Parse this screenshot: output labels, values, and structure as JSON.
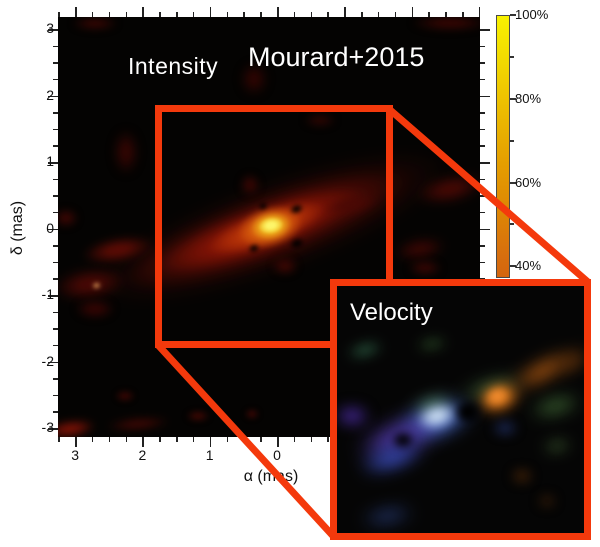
{
  "accent_color": "#f4390c",
  "intensity_panel": {
    "label": "Intensity",
    "credit": "Mourard+2015",
    "xlabel": "α (mas)",
    "ylabel": "δ (mas)",
    "x_tick_labels": [
      "3",
      "2",
      "1",
      "0"
    ],
    "x_tick_values": [
      3,
      2,
      1,
      0
    ],
    "y_tick_labels": [
      "3",
      "2",
      "1",
      "0",
      "-1",
      "-2",
      "-3"
    ],
    "y_tick_values": [
      3,
      2,
      1,
      0,
      -1,
      -2,
      -3
    ]
  },
  "colorbar": {
    "labels": [
      "100%",
      "80%",
      "60%",
      "40%"
    ],
    "values": [
      100,
      80,
      60,
      40
    ],
    "minor_values": [
      90,
      70,
      50
    ],
    "top_color": "#f8f200",
    "bottom_color": "#d4650f"
  },
  "velocity_panel": {
    "label": "Velocity"
  },
  "chart_data": {
    "type": "heatmap",
    "panels": [
      {
        "name": "intensity",
        "title": "Intensity",
        "annotation": "Mourard+2015",
        "xlabel": "α (mas)",
        "ylabel": "δ (mas)",
        "x_axis": {
          "range": [
            3.25,
            -3.0
          ],
          "direction": "reversed",
          "labeled_ticks": [
            3,
            2,
            1,
            0
          ],
          "minor_tick_step": 0.25
        },
        "y_axis": {
          "range": [
            -3.15,
            3.2
          ],
          "labeled_ticks": [
            3,
            2,
            1,
            0,
            -1,
            -2,
            -3
          ],
          "minor_tick_step": 0.25
        },
        "colorbar": {
          "tick_labels": [
            "100%",
            "80%",
            "60%",
            "40%"
          ],
          "visible_range_pct": [
            35,
            100
          ],
          "scale": "yellow (100%) to orange (40%)"
        },
        "features": [
          "elongated emission band from lower-left (~2.5,-1) to upper-right (~-2.5,1) mas, PA ~ -20 deg from x-axis",
          "bright yellow core at ~(0,0) mas peaking near 100%",
          "faint dark-red clumps scattered over field at ~35-45% level",
          "small black nulls flanking the core"
        ],
        "zoom_box_mas": {
          "x": [
            1.8,
            -1.7
          ],
          "y": [
            1.8,
            -1.75
          ]
        }
      },
      {
        "name": "velocity",
        "title": "Velocity",
        "description": "zoomed velocity map of the boxed region: blue/purple-shifted emission on the lower-left side, orange/red-shifted emission on the upper-right side, green wisps between, dark null at the center",
        "axes": "none (inset, no ticks)"
      }
    ]
  },
  "intensity_blobs": {
    "format": [
      "cx",
      "cy",
      "w",
      "h",
      "rot_deg",
      "color",
      "blur_px"
    ],
    "items": [
      [
        215,
        210,
        370,
        88,
        -20,
        "#3a0703",
        7
      ],
      [
        207,
        212,
        300,
        62,
        -20,
        "#5e0c04",
        5
      ],
      [
        202,
        213,
        215,
        46,
        -20,
        "#8e1505",
        4
      ],
      [
        208,
        211,
        125,
        36,
        -20,
        "#c23d08",
        3
      ],
      [
        212,
        210,
        66,
        42,
        -15,
        "#e06c0e",
        2
      ],
      [
        213,
        209,
        42,
        28,
        -10,
        "#f2c41e",
        2
      ],
      [
        213,
        208,
        26,
        17,
        -10,
        "#fdf56a",
        1
      ],
      [
        238,
        192,
        15,
        10,
        -20,
        "#000000",
        2
      ],
      [
        239,
        226,
        16,
        11,
        -20,
        "#000000",
        2
      ],
      [
        196,
        231,
        12,
        9,
        -20,
        "#000000",
        2
      ],
      [
        205,
        189,
        10,
        8,
        -20,
        "#000000",
        2
      ],
      [
        37,
        6,
        46,
        13,
        0,
        "#3a0603",
        4
      ],
      [
        196,
        62,
        26,
        32,
        0,
        "#330502",
        5
      ],
      [
        68,
        135,
        24,
        44,
        0,
        "#380603",
        5
      ],
      [
        8,
        201,
        24,
        18,
        0,
        "#400704",
        4
      ],
      [
        60,
        233,
        72,
        26,
        -10,
        "#5c0b04",
        4
      ],
      [
        32,
        267,
        74,
        32,
        -8,
        "#4a0804",
        5
      ],
      [
        38,
        268,
        9,
        7,
        -8,
        "#dd9858",
        2
      ],
      [
        67,
        379,
        20,
        12,
        0,
        "#390603",
        3
      ],
      [
        140,
        399,
        24,
        12,
        0,
        "#3c0703",
        3
      ],
      [
        194,
        397,
        14,
        10,
        0,
        "#420704",
        3
      ],
      [
        227,
        249,
        26,
        18,
        0,
        "#3f0703",
        4
      ],
      [
        392,
        172,
        70,
        28,
        -12,
        "#460804",
        5
      ],
      [
        392,
        6,
        78,
        16,
        0,
        "#380603",
        4
      ],
      [
        12,
        412,
        52,
        18,
        -8,
        "#7c1105",
        4
      ],
      [
        80,
        407,
        64,
        14,
        -5,
        "#3c0703",
        4
      ],
      [
        192,
        168,
        20,
        22,
        0,
        "#3b0603",
        4
      ],
      [
        292,
        188,
        58,
        20,
        -12,
        "#4a0804",
        4
      ],
      [
        362,
        232,
        52,
        22,
        -10,
        "#3a0603",
        5
      ],
      [
        262,
        103,
        32,
        14,
        0,
        "#2f0502",
        4
      ],
      [
        37,
        292,
        40,
        20,
        0,
        "#350503",
        4
      ],
      [
        367,
        251,
        34,
        16,
        0,
        "#380603",
        4
      ]
    ]
  },
  "velocity_blobs": {
    "format": [
      "cx",
      "cy",
      "w",
      "h",
      "rot_deg",
      "color",
      "blur_px"
    ],
    "items": [
      [
        98,
        134,
        85,
        42,
        -18,
        "#4468cc",
        8
      ],
      [
        62,
        152,
        90,
        38,
        -20,
        "#5038a8",
        9
      ],
      [
        15,
        130,
        36,
        22,
        0,
        "#46289a",
        7
      ],
      [
        55,
        172,
        70,
        26,
        -18,
        "#3448b0",
        8
      ],
      [
        50,
        230,
        55,
        18,
        -10,
        "#223468",
        8
      ],
      [
        95,
        118,
        45,
        18,
        -15,
        "#3f6a4a",
        7
      ],
      [
        155,
        102,
        70,
        20,
        -15,
        "#3a5c34",
        8
      ],
      [
        162,
        112,
        48,
        32,
        -20,
        "#e87a18",
        6
      ],
      [
        160,
        110,
        26,
        18,
        -20,
        "#f89030",
        4
      ],
      [
        205,
        85,
        75,
        22,
        -28,
        "#a85510",
        8
      ],
      [
        235,
        75,
        40,
        16,
        -28,
        "#7a3c0a",
        8
      ],
      [
        218,
        120,
        55,
        20,
        -15,
        "#3a6030",
        8
      ],
      [
        28,
        64,
        38,
        14,
        -15,
        "#2a5a40",
        6
      ],
      [
        95,
        58,
        32,
        12,
        -10,
        "#2a4a26",
        6
      ],
      [
        100,
        130,
        42,
        26,
        -15,
        "#cfe2f4",
        5
      ],
      [
        168,
        142,
        24,
        12,
        0,
        "#2a3f8a",
        6
      ],
      [
        185,
        190,
        20,
        12,
        0,
        "#6a3408",
        6
      ],
      [
        210,
        215,
        16,
        10,
        0,
        "#5a2c08",
        6
      ],
      [
        220,
        160,
        30,
        14,
        -10,
        "#35502a",
        7
      ],
      [
        131,
        126,
        30,
        28,
        0,
        "#000000",
        3
      ],
      [
        66,
        154,
        26,
        20,
        0,
        "#000000",
        4
      ]
    ]
  }
}
